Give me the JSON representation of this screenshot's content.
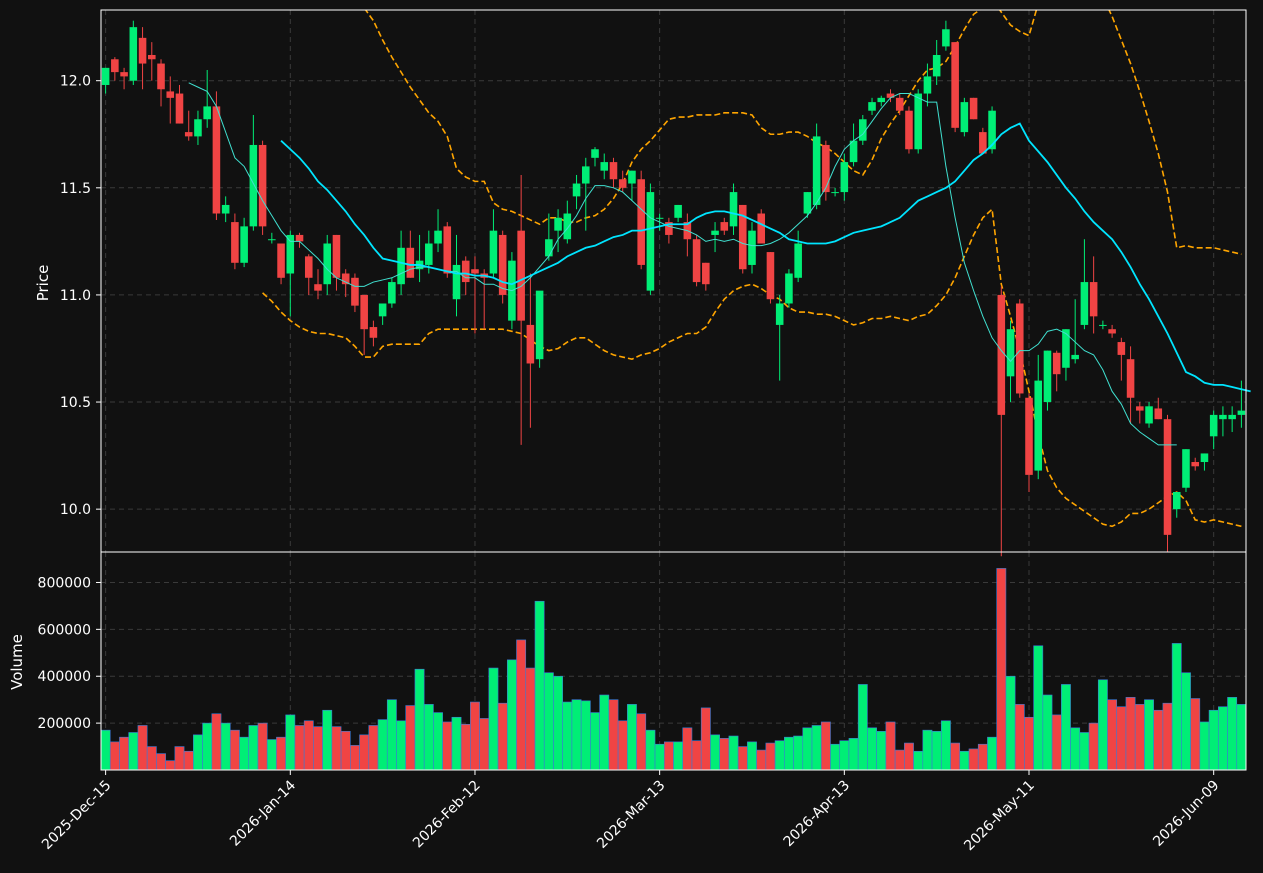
{
  "chart_data": {
    "type": "candlestick",
    "title": "",
    "colors": {
      "background": "#111111",
      "up": "#00ee76",
      "down": "#f04444",
      "sma_fast": "#40e0d0",
      "sma_slow": "#00e5ff",
      "bands": "#ffa500",
      "grid": "#3a3a3a",
      "text": "#ffffff"
    },
    "price_panel": {
      "ylabel": "Price",
      "ylim": [
        9.8,
        12.33
      ],
      "yticks": [
        "10.0",
        "10.5",
        "11.0",
        "11.5",
        "12.0"
      ],
      "ytick_values": [
        10.0,
        10.5,
        11.0,
        11.5,
        12.0
      ]
    },
    "volume_panel": {
      "ylabel": "Volume",
      "ylim": [
        0,
        930000
      ],
      "yticks": [
        "200000",
        "400000",
        "600000",
        "800000"
      ],
      "ytick_values": [
        200000,
        400000,
        600000,
        800000
      ]
    },
    "xlabels": [
      "2025-Dec-15",
      "2026-Jan-14",
      "2026-Feb-12",
      "2026-Mar-13",
      "2026-Apr-13",
      "2026-May-11",
      "2026-Jun-09"
    ],
    "xlabel_indices": [
      0,
      20,
      40,
      60,
      80,
      100,
      120
    ],
    "bars": [
      [
        11.98,
        12.06,
        11.94,
        12.06,
        170000
      ],
      [
        12.1,
        12.11,
        12.0,
        12.04,
        120000
      ],
      [
        12.04,
        12.06,
        11.96,
        12.02,
        140000
      ],
      [
        12.0,
        12.28,
        11.98,
        12.25,
        160000
      ],
      [
        12.2,
        12.25,
        11.96,
        12.08,
        190000
      ],
      [
        12.12,
        12.18,
        12.0,
        12.1,
        100000
      ],
      [
        12.08,
        12.1,
        11.88,
        11.96,
        70000
      ],
      [
        11.95,
        12.02,
        11.8,
        11.92,
        40000
      ],
      [
        11.94,
        11.98,
        11.8,
        11.8,
        100000
      ],
      [
        11.76,
        11.86,
        11.72,
        11.74,
        80000
      ],
      [
        11.74,
        11.86,
        11.7,
        11.82,
        150000
      ],
      [
        11.82,
        12.05,
        11.78,
        11.88,
        200000
      ],
      [
        11.88,
        11.95,
        11.35,
        11.38,
        240000
      ],
      [
        11.38,
        11.46,
        11.34,
        11.42,
        200000
      ],
      [
        11.34,
        11.38,
        11.12,
        11.15,
        170000
      ],
      [
        11.15,
        11.36,
        11.13,
        11.32,
        140000
      ],
      [
        11.32,
        11.84,
        11.3,
        11.7,
        190000
      ],
      [
        11.7,
        11.72,
        11.28,
        11.32,
        200000
      ],
      [
        11.26,
        11.29,
        11.24,
        11.26,
        130000
      ],
      [
        11.24,
        11.24,
        11.05,
        11.08,
        140000
      ],
      [
        11.1,
        11.3,
        10.9,
        11.28,
        235000
      ],
      [
        11.28,
        11.29,
        11.22,
        11.25,
        190000
      ],
      [
        11.18,
        11.19,
        11.0,
        11.08,
        210000
      ],
      [
        11.05,
        11.12,
        10.98,
        11.02,
        185000
      ],
      [
        11.05,
        11.28,
        11.0,
        11.24,
        255000
      ],
      [
        11.28,
        11.28,
        11.02,
        11.08,
        185000
      ],
      [
        11.1,
        11.12,
        10.99,
        11.05,
        165000
      ],
      [
        11.08,
        11.1,
        10.92,
        10.95,
        105000
      ],
      [
        11.0,
        11.0,
        10.72,
        10.84,
        150000
      ],
      [
        10.85,
        10.88,
        10.76,
        10.8,
        190000
      ],
      [
        10.9,
        10.96,
        10.86,
        10.96,
        215000
      ],
      [
        10.96,
        11.08,
        10.94,
        11.06,
        300000
      ],
      [
        11.05,
        11.3,
        11.0,
        11.22,
        210000
      ],
      [
        11.22,
        11.3,
        11.08,
        11.08,
        275000
      ],
      [
        11.12,
        11.28,
        11.06,
        11.16,
        430000
      ],
      [
        11.14,
        11.3,
        11.1,
        11.24,
        280000
      ],
      [
        11.24,
        11.4,
        11.2,
        11.3,
        245000
      ],
      [
        11.32,
        11.34,
        11.08,
        11.1,
        205000
      ],
      [
        10.98,
        11.28,
        10.9,
        11.14,
        225000
      ],
      [
        11.16,
        11.18,
        11.0,
        11.06,
        195000
      ],
      [
        11.12,
        11.18,
        10.82,
        11.1,
        290000
      ],
      [
        11.1,
        11.12,
        10.84,
        11.08,
        220000
      ],
      [
        11.1,
        11.4,
        11.08,
        11.3,
        435000
      ],
      [
        11.28,
        11.3,
        10.96,
        11.0,
        285000
      ],
      [
        10.88,
        11.2,
        10.84,
        11.16,
        470000
      ],
      [
        11.3,
        11.56,
        10.3,
        10.88,
        555000
      ],
      [
        10.86,
        11.1,
        10.38,
        10.68,
        435000
      ],
      [
        10.7,
        11.0,
        10.66,
        11.02,
        720000
      ],
      [
        11.18,
        11.38,
        11.16,
        11.26,
        415000
      ],
      [
        11.3,
        11.4,
        11.2,
        11.36,
        400000
      ],
      [
        11.26,
        11.44,
        11.24,
        11.38,
        290000
      ],
      [
        11.46,
        11.56,
        11.4,
        11.52,
        300000
      ],
      [
        11.52,
        11.64,
        11.3,
        11.6,
        295000
      ],
      [
        11.64,
        11.69,
        11.6,
        11.68,
        245000
      ],
      [
        11.58,
        11.66,
        11.54,
        11.62,
        320000
      ],
      [
        11.62,
        11.64,
        11.5,
        11.54,
        300000
      ],
      [
        11.54,
        11.58,
        11.48,
        11.5,
        210000
      ],
      [
        11.52,
        11.58,
        11.44,
        11.58,
        280000
      ],
      [
        11.54,
        11.58,
        11.12,
        11.14,
        240000
      ],
      [
        11.02,
        11.52,
        11.0,
        11.48,
        170000
      ],
      [
        11.36,
        11.38,
        11.3,
        11.36,
        110000
      ],
      [
        11.34,
        11.36,
        11.24,
        11.28,
        120000
      ],
      [
        11.36,
        11.42,
        11.34,
        11.42,
        120000
      ],
      [
        11.34,
        11.38,
        11.18,
        11.26,
        180000
      ],
      [
        11.26,
        11.28,
        11.04,
        11.06,
        125000
      ],
      [
        11.15,
        11.15,
        11.02,
        11.05,
        265000
      ],
      [
        11.28,
        11.34,
        11.2,
        11.3,
        150000
      ],
      [
        11.34,
        11.36,
        11.28,
        11.3,
        135000
      ],
      [
        11.32,
        11.52,
        11.28,
        11.48,
        145000
      ],
      [
        11.42,
        11.42,
        11.1,
        11.12,
        100000
      ],
      [
        11.14,
        11.34,
        11.1,
        11.3,
        120000
      ],
      [
        11.38,
        11.4,
        11.24,
        11.24,
        85000
      ],
      [
        11.2,
        11.2,
        10.96,
        10.98,
        115000
      ],
      [
        10.86,
        11.0,
        10.6,
        10.96,
        125000
      ],
      [
        10.96,
        11.12,
        10.94,
        11.1,
        140000
      ],
      [
        11.08,
        11.3,
        11.06,
        11.24,
        145000
      ],
      [
        11.38,
        11.48,
        11.36,
        11.48,
        180000
      ],
      [
        11.42,
        11.8,
        11.4,
        11.74,
        190000
      ],
      [
        11.7,
        11.72,
        11.44,
        11.48,
        205000
      ],
      [
        11.48,
        11.5,
        11.46,
        11.48,
        110000
      ],
      [
        11.48,
        11.66,
        11.44,
        11.62,
        125000
      ],
      [
        11.62,
        11.8,
        11.6,
        11.72,
        135000
      ],
      [
        11.72,
        11.84,
        11.7,
        11.82,
        365000
      ],
      [
        11.86,
        11.92,
        11.84,
        11.9,
        180000
      ],
      [
        11.9,
        11.93,
        11.88,
        11.92,
        165000
      ],
      [
        11.94,
        11.96,
        11.9,
        11.92,
        205000
      ],
      [
        11.92,
        11.94,
        11.84,
        11.86,
        85000
      ],
      [
        11.86,
        11.88,
        11.66,
        11.68,
        115000
      ],
      [
        11.68,
        11.96,
        11.66,
        11.94,
        80000
      ],
      [
        11.94,
        12.08,
        11.88,
        12.02,
        170000
      ],
      [
        12.02,
        12.19,
        11.98,
        12.12,
        165000
      ],
      [
        12.16,
        12.28,
        12.14,
        12.24,
        210000
      ],
      [
        12.18,
        12.18,
        11.76,
        11.78,
        115000
      ],
      [
        11.76,
        11.92,
        11.74,
        11.9,
        80000
      ],
      [
        11.92,
        11.92,
        11.82,
        11.82,
        90000
      ],
      [
        11.76,
        11.78,
        11.66,
        11.66,
        110000
      ],
      [
        11.68,
        11.88,
        11.66,
        11.86,
        140000
      ],
      [
        11.0,
        11.04,
        9.78,
        10.44,
        860000
      ],
      [
        10.62,
        10.88,
        10.5,
        10.84,
        400000
      ],
      [
        10.96,
        10.98,
        10.52,
        10.54,
        280000
      ],
      [
        10.52,
        10.54,
        10.08,
        10.16,
        225000
      ],
      [
        10.18,
        10.72,
        10.14,
        10.6,
        530000
      ],
      [
        10.5,
        10.74,
        10.46,
        10.74,
        320000
      ],
      [
        10.73,
        10.74,
        10.55,
        10.63,
        235000
      ],
      [
        10.66,
        10.84,
        10.6,
        10.84,
        365000
      ],
      [
        10.7,
        10.98,
        10.68,
        10.72,
        180000
      ],
      [
        10.86,
        11.26,
        10.84,
        11.06,
        160000
      ],
      [
        11.06,
        11.18,
        10.82,
        10.9,
        200000
      ],
      [
        10.86,
        10.88,
        10.84,
        10.86,
        385000
      ],
      [
        10.84,
        10.86,
        10.8,
        10.82,
        300000
      ],
      [
        10.78,
        10.8,
        10.6,
        10.72,
        270000
      ],
      [
        10.7,
        10.76,
        10.4,
        10.52,
        310000
      ],
      [
        10.48,
        10.5,
        10.4,
        10.46,
        280000
      ],
      [
        10.4,
        10.5,
        10.38,
        10.48,
        300000
      ],
      [
        10.47,
        10.52,
        10.42,
        10.42,
        255000
      ],
      [
        10.42,
        10.44,
        9.8,
        9.88,
        285000
      ],
      [
        10.0,
        10.08,
        9.96,
        10.08,
        540000
      ],
      [
        10.1,
        10.28,
        10.08,
        10.28,
        415000
      ],
      [
        10.22,
        10.24,
        10.18,
        10.2,
        305000
      ],
      [
        10.22,
        10.26,
        10.18,
        10.26,
        205000
      ],
      [
        10.34,
        10.46,
        10.28,
        10.44,
        255000
      ],
      [
        10.42,
        10.48,
        10.34,
        10.44,
        270000
      ],
      [
        10.42,
        10.48,
        10.36,
        10.44,
        310000
      ],
      [
        10.44,
        10.6,
        10.38,
        10.46,
        280000
      ]
    ],
    "sma_fast_start": 9,
    "sma_fast": [
      11.99,
      11.97,
      11.95,
      11.88,
      11.76,
      11.64,
      11.6,
      11.52,
      11.44,
      11.37,
      11.3,
      11.25,
      11.25,
      11.21,
      11.17,
      11.12,
      11.08,
      11.06,
      11.04,
      11.04,
      11.06,
      11.07,
      11.08,
      11.1,
      11.12,
      11.13,
      11.13,
      11.12,
      11.11,
      11.11,
      11.08,
      11.08,
      11.05,
      11.05,
      11.03,
      11.02,
      11.04,
      11.08,
      11.13,
      11.18,
      11.26,
      11.31,
      11.37,
      11.45,
      11.51,
      11.51,
      11.5,
      11.48,
      11.44,
      11.4,
      11.36,
      11.34,
      11.32,
      11.31,
      11.3,
      11.28,
      11.25,
      11.26,
      11.25,
      11.26,
      11.24,
      11.23,
      11.23,
      11.24,
      11.26,
      11.29,
      11.33,
      11.37,
      11.43,
      11.5,
      11.6,
      11.68,
      11.72,
      11.75,
      11.81,
      11.87,
      11.92,
      11.94,
      11.94,
      11.92,
      11.9,
      11.9,
      11.6,
      11.36,
      11.15,
      11.02,
      10.9,
      10.8,
      10.74,
      10.69,
      10.74,
      10.74,
      10.77,
      10.83,
      10.84,
      10.82,
      10.78,
      10.74,
      10.72,
      10.65,
      10.55,
      10.49,
      10.4,
      10.36,
      10.33,
      10.3,
      10.3,
      10.3
    ],
    "sma_slow_start": 19,
    "sma_slow": [
      11.72,
      11.68,
      11.64,
      11.59,
      11.53,
      11.49,
      11.44,
      11.39,
      11.33,
      11.28,
      11.22,
      11.17,
      11.16,
      11.15,
      11.14,
      11.14,
      11.13,
      11.12,
      11.11,
      11.1,
      11.1,
      11.09,
      11.09,
      11.08,
      11.06,
      11.05,
      11.07,
      11.09,
      11.11,
      11.13,
      11.15,
      11.18,
      11.2,
      11.22,
      11.23,
      11.25,
      11.27,
      11.28,
      11.3,
      11.3,
      11.31,
      11.32,
      11.33,
      11.33,
      11.33,
      11.36,
      11.38,
      11.39,
      11.39,
      11.38,
      11.37,
      11.35,
      11.33,
      11.31,
      11.29,
      11.26,
      11.25,
      11.24,
      11.24,
      11.24,
      11.25,
      11.27,
      11.29,
      11.3,
      11.31,
      11.32,
      11.34,
      11.36,
      11.4,
      11.44,
      11.46,
      11.48,
      11.5,
      11.53,
      11.58,
      11.63,
      11.66,
      11.7,
      11.75,
      11.78,
      11.8,
      11.72,
      11.67,
      11.62,
      11.56,
      11.5,
      11.45,
      11.39,
      11.34,
      11.3,
      11.26,
      11.2,
      11.13,
      11.05,
      10.98,
      10.9,
      10.82,
      10.73,
      10.64,
      10.62,
      10.59,
      10.58,
      10.58,
      10.57,
      10.56,
      10.55
    ],
    "bb_upper": [
      12.41,
      12.34,
      12.28,
      12.19,
      12.11,
      12.04,
      11.97,
      11.91,
      11.85,
      11.81,
      11.74,
      11.59,
      11.55,
      11.53,
      11.53,
      11.43,
      11.4,
      11.39,
      11.37,
      11.35,
      11.33,
      11.36,
      11.36,
      11.34,
      11.34,
      11.36,
      11.37,
      11.4,
      11.45,
      11.52,
      11.62,
      11.68,
      11.72,
      11.77,
      11.82,
      11.83,
      11.83,
      11.84,
      11.84,
      11.84,
      11.85,
      11.85,
      11.85,
      11.84,
      11.78,
      11.75,
      11.75,
      11.76,
      11.76,
      11.74,
      11.71,
      11.69,
      11.66,
      11.62,
      11.58,
      11.56,
      11.63,
      11.73,
      11.8,
      11.86,
      11.93,
      12.0,
      12.05,
      12.06,
      12.09,
      12.16,
      12.24,
      12.31,
      12.34,
      12.38,
      12.32,
      12.26,
      12.23,
      12.21,
      12.36,
      12.42,
      12.45,
      12.48,
      12.48,
      12.47,
      12.42,
      12.39,
      12.3,
      12.19,
      12.08,
      11.95,
      11.81,
      11.66,
      11.48,
      11.22,
      11.23,
      11.22,
      11.22,
      11.22,
      11.21,
      11.2,
      11.19
    ],
    "bb_lower": [
      11.01,
      10.97,
      10.92,
      10.88,
      10.85,
      10.83,
      10.82,
      10.82,
      10.81,
      10.8,
      10.76,
      10.71,
      10.71,
      10.76,
      10.77,
      10.77,
      10.77,
      10.77,
      10.82,
      10.84,
      10.84,
      10.84,
      10.84,
      10.84,
      10.84,
      10.84,
      10.84,
      10.83,
      10.82,
      10.79,
      10.76,
      10.74,
      10.75,
      10.78,
      10.8,
      10.8,
      10.77,
      10.74,
      10.72,
      10.71,
      10.7,
      10.72,
      10.73,
      10.75,
      10.78,
      10.8,
      10.82,
      10.82,
      10.85,
      10.92,
      10.98,
      11.02,
      11.04,
      11.05,
      11.03,
      11.0,
      10.98,
      10.94,
      10.92,
      10.92,
      10.91,
      10.91,
      10.9,
      10.88,
      10.86,
      10.87,
      10.89,
      10.89,
      10.9,
      10.89,
      10.88,
      10.9,
      10.91,
      10.95,
      11.0,
      11.08,
      11.18,
      11.28,
      11.36,
      11.4,
      11.05,
      10.9,
      10.74,
      10.55,
      10.35,
      10.18,
      10.1,
      10.05,
      10.02,
      9.99,
      9.96,
      9.93,
      9.92,
      9.94,
      9.98,
      9.98,
      10.0,
      10.03,
      10.06,
      10.08,
      10.04,
      9.95,
      9.94,
      9.95,
      9.94,
      9.93,
      9.92
    ]
  }
}
